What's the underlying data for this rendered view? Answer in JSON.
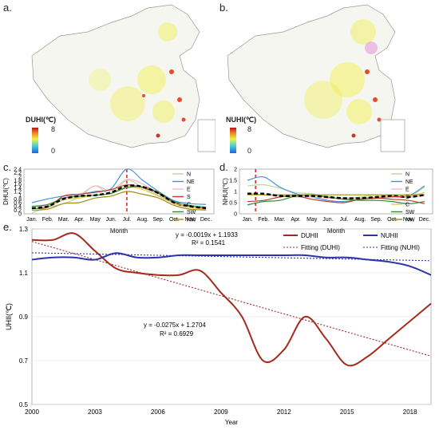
{
  "panels": {
    "a": {
      "label": "a.",
      "legend_title": "DUHI(℃)",
      "max": "8",
      "min": "0"
    },
    "b": {
      "label": "b.",
      "legend_title": "NUHI(℃)",
      "max": "8",
      "min": "0"
    },
    "c": {
      "label": "c."
    },
    "d": {
      "label": "d."
    },
    "e": {
      "label": "e."
    }
  },
  "colors": {
    "N": "#b7d9a0",
    "NE": "#4a90d9",
    "E": "#f2b8c0",
    "S": "#c0392b",
    "C": "#e8c84a",
    "SW": "#2e8b3a",
    "NW": "#a08a1a",
    "avg": "#000000",
    "DUHII": "#a52a1e",
    "NUHII": "#2a35a8",
    "vline": "#cc0000"
  },
  "chart_data": [
    {
      "id": "c",
      "type": "line",
      "categories": [
        "Jan.",
        "Feb.",
        "Mar.",
        "Apr.",
        "May",
        "Jun.",
        "Jul.",
        "Aug.",
        "Sep.",
        "Oct.",
        "Nov.",
        "Dec."
      ],
      "xlabel": "Month",
      "ylabel": "DHUI(℃)",
      "ylim": [
        0,
        2.4
      ],
      "yticks": [
        "0",
        "0.2",
        "0.4",
        "0.6",
        "0.8",
        "1",
        "1.2",
        "1.4",
        "1.6",
        "1.8",
        "2",
        "2.2",
        "2.4"
      ],
      "vline_month_index": 6,
      "series": [
        {
          "name": "N",
          "values": [
            0.05,
            0.35,
            0.55,
            0.9,
            1.5,
            1.05,
            1.8,
            1.4,
            1.0,
            0.6,
            0.4,
            0.2
          ]
        },
        {
          "name": "NE",
          "values": [
            0.6,
            0.8,
            0.95,
            1.05,
            1.2,
            1.35,
            2.4,
            1.8,
            1.2,
            0.7,
            0.55,
            0.5
          ]
        },
        {
          "name": "E",
          "values": [
            0.3,
            0.45,
            0.75,
            1.0,
            1.5,
            1.25,
            1.85,
            1.6,
            1.1,
            0.55,
            0.35,
            0.3
          ]
        },
        {
          "name": "S",
          "values": [
            0.3,
            0.35,
            0.95,
            1.05,
            1.15,
            1.3,
            1.55,
            1.4,
            1.1,
            0.6,
            0.35,
            0.3
          ]
        },
        {
          "name": "C",
          "values": [
            0.3,
            0.4,
            0.75,
            0.85,
            1.0,
            1.1,
            1.45,
            1.3,
            0.95,
            0.55,
            0.35,
            0.25
          ]
        },
        {
          "name": "SW",
          "values": [
            0.4,
            0.5,
            0.85,
            0.95,
            1.0,
            1.1,
            1.4,
            1.45,
            1.15,
            0.65,
            0.45,
            0.35
          ]
        },
        {
          "name": "NW",
          "values": [
            0.2,
            0.25,
            0.55,
            0.6,
            0.85,
            0.95,
            1.2,
            1.05,
            0.85,
            0.45,
            0.25,
            0.2
          ]
        },
        {
          "values": [
            0.3,
            0.4,
            0.8,
            0.95,
            1.0,
            1.15,
            1.5,
            1.45,
            1.1,
            0.6,
            0.4,
            0.3
          ],
          "dashed": true
        }
      ]
    },
    {
      "id": "d",
      "type": "line",
      "categories": [
        "Jan.",
        "Feb.",
        "Mar.",
        "Apr.",
        "May",
        "Jun.",
        "Jul.",
        "Aug.",
        "Sep.",
        "Oct.",
        "Nov.",
        "Dec."
      ],
      "xlabel": "Month",
      "ylabel": "NHUI(℃)",
      "ylim": [
        0,
        2
      ],
      "yticks": [
        "0",
        "0.5",
        "1",
        "1.5",
        "2"
      ],
      "vline_month_index": 0.5,
      "series": [
        {
          "name": "N",
          "values": [
            1.25,
            1.3,
            1.15,
            0.95,
            0.9,
            0.75,
            0.7,
            0.75,
            0.85,
            0.8,
            0.75,
            1.2
          ]
        },
        {
          "name": "NE",
          "values": [
            1.5,
            1.65,
            1.2,
            0.9,
            0.75,
            0.6,
            0.55,
            0.65,
            0.7,
            0.75,
            0.8,
            1.25
          ]
        },
        {
          "name": "E",
          "values": [
            0.9,
            0.85,
            0.8,
            0.75,
            0.75,
            0.7,
            0.7,
            0.7,
            0.75,
            0.8,
            0.75,
            0.8
          ]
        },
        {
          "name": "S",
          "values": [
            0.55,
            0.6,
            0.75,
            0.8,
            0.65,
            0.55,
            0.5,
            0.65,
            0.7,
            0.65,
            0.6,
            0.45
          ]
        },
        {
          "name": "C",
          "values": [
            0.95,
            0.85,
            0.85,
            0.8,
            0.8,
            0.75,
            0.65,
            0.7,
            0.75,
            0.75,
            0.8,
            0.95
          ]
        },
        {
          "name": "SW",
          "values": [
            0.4,
            0.55,
            0.6,
            0.8,
            0.85,
            0.75,
            0.65,
            0.6,
            0.6,
            0.55,
            0.45,
            0.55
          ]
        },
        {
          "name": "NW",
          "values": [
            0.85,
            0.85,
            0.85,
            0.85,
            0.85,
            0.85,
            0.85,
            0.85,
            0.85,
            0.85,
            0.85,
            0.85
          ]
        },
        {
          "values": [
            0.9,
            0.9,
            0.8,
            0.8,
            0.8,
            0.75,
            0.7,
            0.7,
            0.75,
            0.8,
            0.75,
            0.85
          ],
          "dashed": true
        }
      ]
    },
    {
      "id": "e",
      "type": "line",
      "x": [
        2000,
        2001,
        2002,
        2003,
        2004,
        2005,
        2006,
        2007,
        2008,
        2009,
        2010,
        2011,
        2012,
        2013,
        2014,
        2015,
        2016,
        2017,
        2018,
        2019
      ],
      "xticks": [
        "2000",
        "2003",
        "2006",
        "2009",
        "2012",
        "2015",
        "2018"
      ],
      "xlabel": "Year",
      "ylabel": "UHII(℃)",
      "ylim": [
        0.5,
        1.3
      ],
      "yticks": [
        "0.5",
        "0.7",
        "0.9",
        "1.1",
        "1.3"
      ],
      "series": [
        {
          "name": "DUHII",
          "values": [
            1.25,
            1.25,
            1.28,
            1.2,
            1.12,
            1.1,
            1.09,
            1.09,
            1.11,
            1.01,
            0.9,
            0.7,
            0.75,
            0.9,
            0.8,
            0.68,
            0.72,
            0.8,
            0.88,
            0.96
          ]
        },
        {
          "name": "NUHII",
          "values": [
            1.16,
            1.17,
            1.17,
            1.16,
            1.19,
            1.17,
            1.17,
            1.18,
            1.18,
            1.18,
            1.18,
            1.18,
            1.18,
            1.18,
            1.17,
            1.17,
            1.16,
            1.15,
            1.13,
            1.09
          ]
        },
        {
          "name": "Fitting (DUHI)",
          "slope": -0.0275,
          "intercept": 1.2704
        },
        {
          "name": "Fitting (NUHI)",
          "slope": -0.0019,
          "intercept": 1.1933
        }
      ],
      "annotations": {
        "nuhi_eq": "y = -0.0019x + 1.1933",
        "nuhi_r2": "R² = 0.1541",
        "duhi_eq": "y = -0.0275x + 1.2704",
        "duhi_r2": "R² = 0.6929"
      }
    }
  ]
}
